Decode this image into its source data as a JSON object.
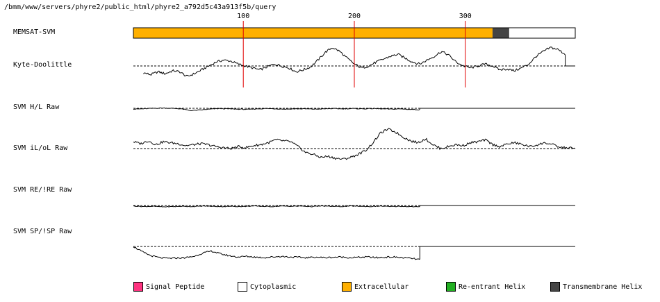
{
  "header": {
    "path": "/bmm/www/servers/phyre2/public_html/phyre2_a792d5c43a913f5b/query"
  },
  "tracks": {
    "memsat": "MEMSAT-SVM",
    "kd": "Kyte-Doolittle",
    "hl": "SVM H/L Raw",
    "iloL": "SVM iL/oL Raw",
    "re": "SVM RE/!RE Raw",
    "sp": "SVM SP/!SP Raw"
  },
  "legend": [
    {
      "label": "Signal Peptide",
      "color": "#ff3380"
    },
    {
      "label": "Cytoplasmic",
      "color": "#ffffff"
    },
    {
      "label": "Extracellular",
      "color": "#ffb000"
    },
    {
      "label": "Re-entrant Helix",
      "color": "#22b022"
    },
    {
      "label": "Transmembrane Helix",
      "color": "#444444"
    }
  ],
  "chart_data": {
    "type": "line",
    "x_axis": {
      "min": 1,
      "max": 399,
      "ticks": [
        100,
        200,
        300
      ],
      "marker_color": "#e00000"
    },
    "memsat_segments": [
      {
        "start": 1,
        "end": 324,
        "state": "Extracellular",
        "color": "#ffb000"
      },
      {
        "start": 325,
        "end": 339,
        "state": "Transmembrane Helix",
        "color": "#444444"
      },
      {
        "start": 340,
        "end": 399,
        "state": "Cytoplasmic",
        "color": "#ffffff"
      }
    ],
    "series": [
      {
        "name": "Kyte-Doolittle",
        "data_end": 390,
        "profile": [
          -0.35,
          -0.45,
          -0.3,
          -0.4,
          -0.25,
          -0.3,
          -0.55,
          -0.4,
          -0.2,
          0.0,
          0.2,
          0.3,
          0.25,
          0.1,
          0.0,
          -0.1,
          -0.2,
          -0.05,
          0.1,
          0.0,
          -0.1,
          -0.3,
          -0.2,
          -0.05,
          0.3,
          0.7,
          0.95,
          0.75,
          0.4,
          0.1,
          -0.1,
          0.0,
          0.2,
          0.35,
          0.5,
          0.6,
          0.4,
          0.2,
          0.1,
          0.3,
          0.5,
          0.75,
          0.55,
          0.2,
          0.0,
          -0.1,
          0.0,
          0.1,
          0.0,
          -0.2,
          -0.15,
          -0.25,
          -0.1,
          0.1,
          0.5,
          0.75,
          0.95,
          0.85,
          0.6
        ]
      },
      {
        "name": "SVM H/L Raw",
        "data_end": 259,
        "profile": [
          -0.15,
          -0.1,
          0.0,
          0.05,
          0.0,
          -0.1,
          -0.4,
          -0.3,
          -0.15,
          -0.05,
          -0.1,
          -0.15,
          -0.2,
          -0.1,
          -0.05,
          -0.1,
          -0.15,
          -0.1,
          -0.1,
          -0.15,
          -0.1,
          -0.05,
          -0.1,
          -0.05,
          -0.1,
          -0.05,
          -0.1,
          -0.15,
          -0.1,
          -0.2,
          -0.25
        ]
      },
      {
        "name": "SVM iL/oL Raw",
        "data_end": 399,
        "profile": [
          0.35,
          0.25,
          0.4,
          0.2,
          0.35,
          0.3,
          0.25,
          0.15,
          0.2,
          0.25,
          0.2,
          0.1,
          0.05,
          0.0,
          0.1,
          0.05,
          0.15,
          0.2,
          0.3,
          0.45,
          0.4,
          0.35,
          0.1,
          -0.2,
          -0.3,
          -0.45,
          -0.4,
          -0.5,
          -0.55,
          -0.45,
          -0.3,
          -0.1,
          0.3,
          0.8,
          1.0,
          0.85,
          0.6,
          0.4,
          0.3,
          0.5,
          0.2,
          0.0,
          0.1,
          0.2,
          0.15,
          0.3,
          0.35,
          0.45,
          0.2,
          0.1,
          0.25,
          0.3,
          0.2,
          0.1,
          0.2,
          0.3,
          0.2,
          0.05,
          0.05,
          0.0
        ]
      },
      {
        "name": "SVM RE/!RE Raw",
        "data_end": 259,
        "profile": [
          -0.1,
          -0.2,
          -0.15,
          -0.25,
          -0.2,
          -0.15,
          -0.2,
          -0.1,
          -0.15,
          -0.2,
          -0.15,
          -0.2,
          -0.1,
          -0.15,
          -0.2,
          -0.1,
          -0.15,
          -0.1,
          -0.2,
          -0.1,
          -0.15,
          -0.2,
          -0.1,
          -0.15,
          -0.2,
          -0.1,
          -0.2,
          -0.15,
          -0.2,
          -0.25
        ]
      },
      {
        "name": "SVM SP/!SP Raw",
        "data_end": 259,
        "profile": [
          0.0,
          -0.4,
          -0.7,
          -0.85,
          -0.9,
          -0.88,
          -0.85,
          -0.75,
          -0.5,
          -0.35,
          -0.55,
          -0.7,
          -0.8,
          -0.75,
          -0.8,
          -0.85,
          -0.8,
          -0.75,
          -0.8,
          -0.82,
          -0.85,
          -0.8,
          -0.85,
          -0.82,
          -0.8,
          -0.85,
          -0.82,
          -0.8,
          -0.85,
          -0.82,
          -0.8,
          -0.85,
          -0.9,
          -1.0
        ]
      }
    ]
  }
}
